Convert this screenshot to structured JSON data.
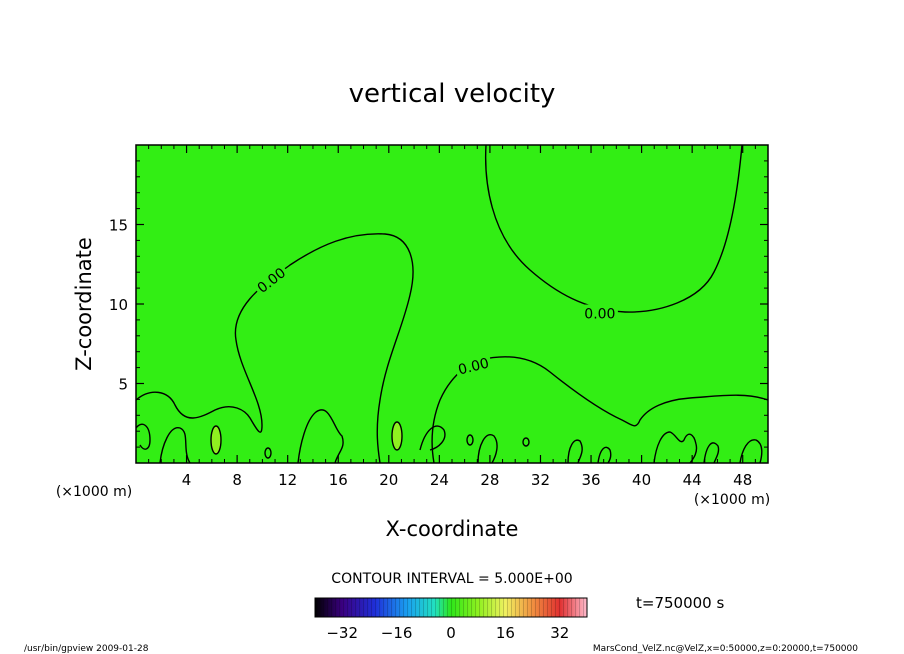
{
  "chart_data": {
    "type": "heatmap",
    "title": "vertical velocity",
    "xlabel": "X-coordinate",
    "ylabel": "Z-coordinate",
    "x_unit": "(×1000 m)",
    "xlim": [
      0,
      50
    ],
    "ylim": [
      0,
      20
    ],
    "x_ticks": [
      4,
      8,
      12,
      16,
      20,
      24,
      28,
      32,
      36,
      40,
      44,
      48
    ],
    "y_ticks": [
      5,
      10,
      15
    ],
    "contour_labels": [
      {
        "text": "0.00",
        "x": 10.7,
        "z": 11.5,
        "angle": -38
      },
      {
        "text": "0.00",
        "x": 36.7,
        "z": 9.4,
        "angle": 0
      },
      {
        "text": "0.00",
        "x": 26.7,
        "z": 6.1,
        "angle": -14
      }
    ],
    "contour_interval": "CONTOUR INTERVAL = 5.000E+00",
    "time_label": "t=750000 s",
    "colorbar": {
      "ticks": [
        -32,
        -16,
        0,
        16,
        32
      ],
      "range": [
        -40,
        40
      ]
    },
    "footer_left": "/usr/bin/gpview  2009-01-28",
    "footer_right": "MarsCond_VelZ.nc@VelZ,x=0:50000,z=0:20000,t=750000",
    "colors": {
      "field": "#32ee14",
      "neg_low": "#000000",
      "pos_high": "#ffbbcc"
    }
  }
}
